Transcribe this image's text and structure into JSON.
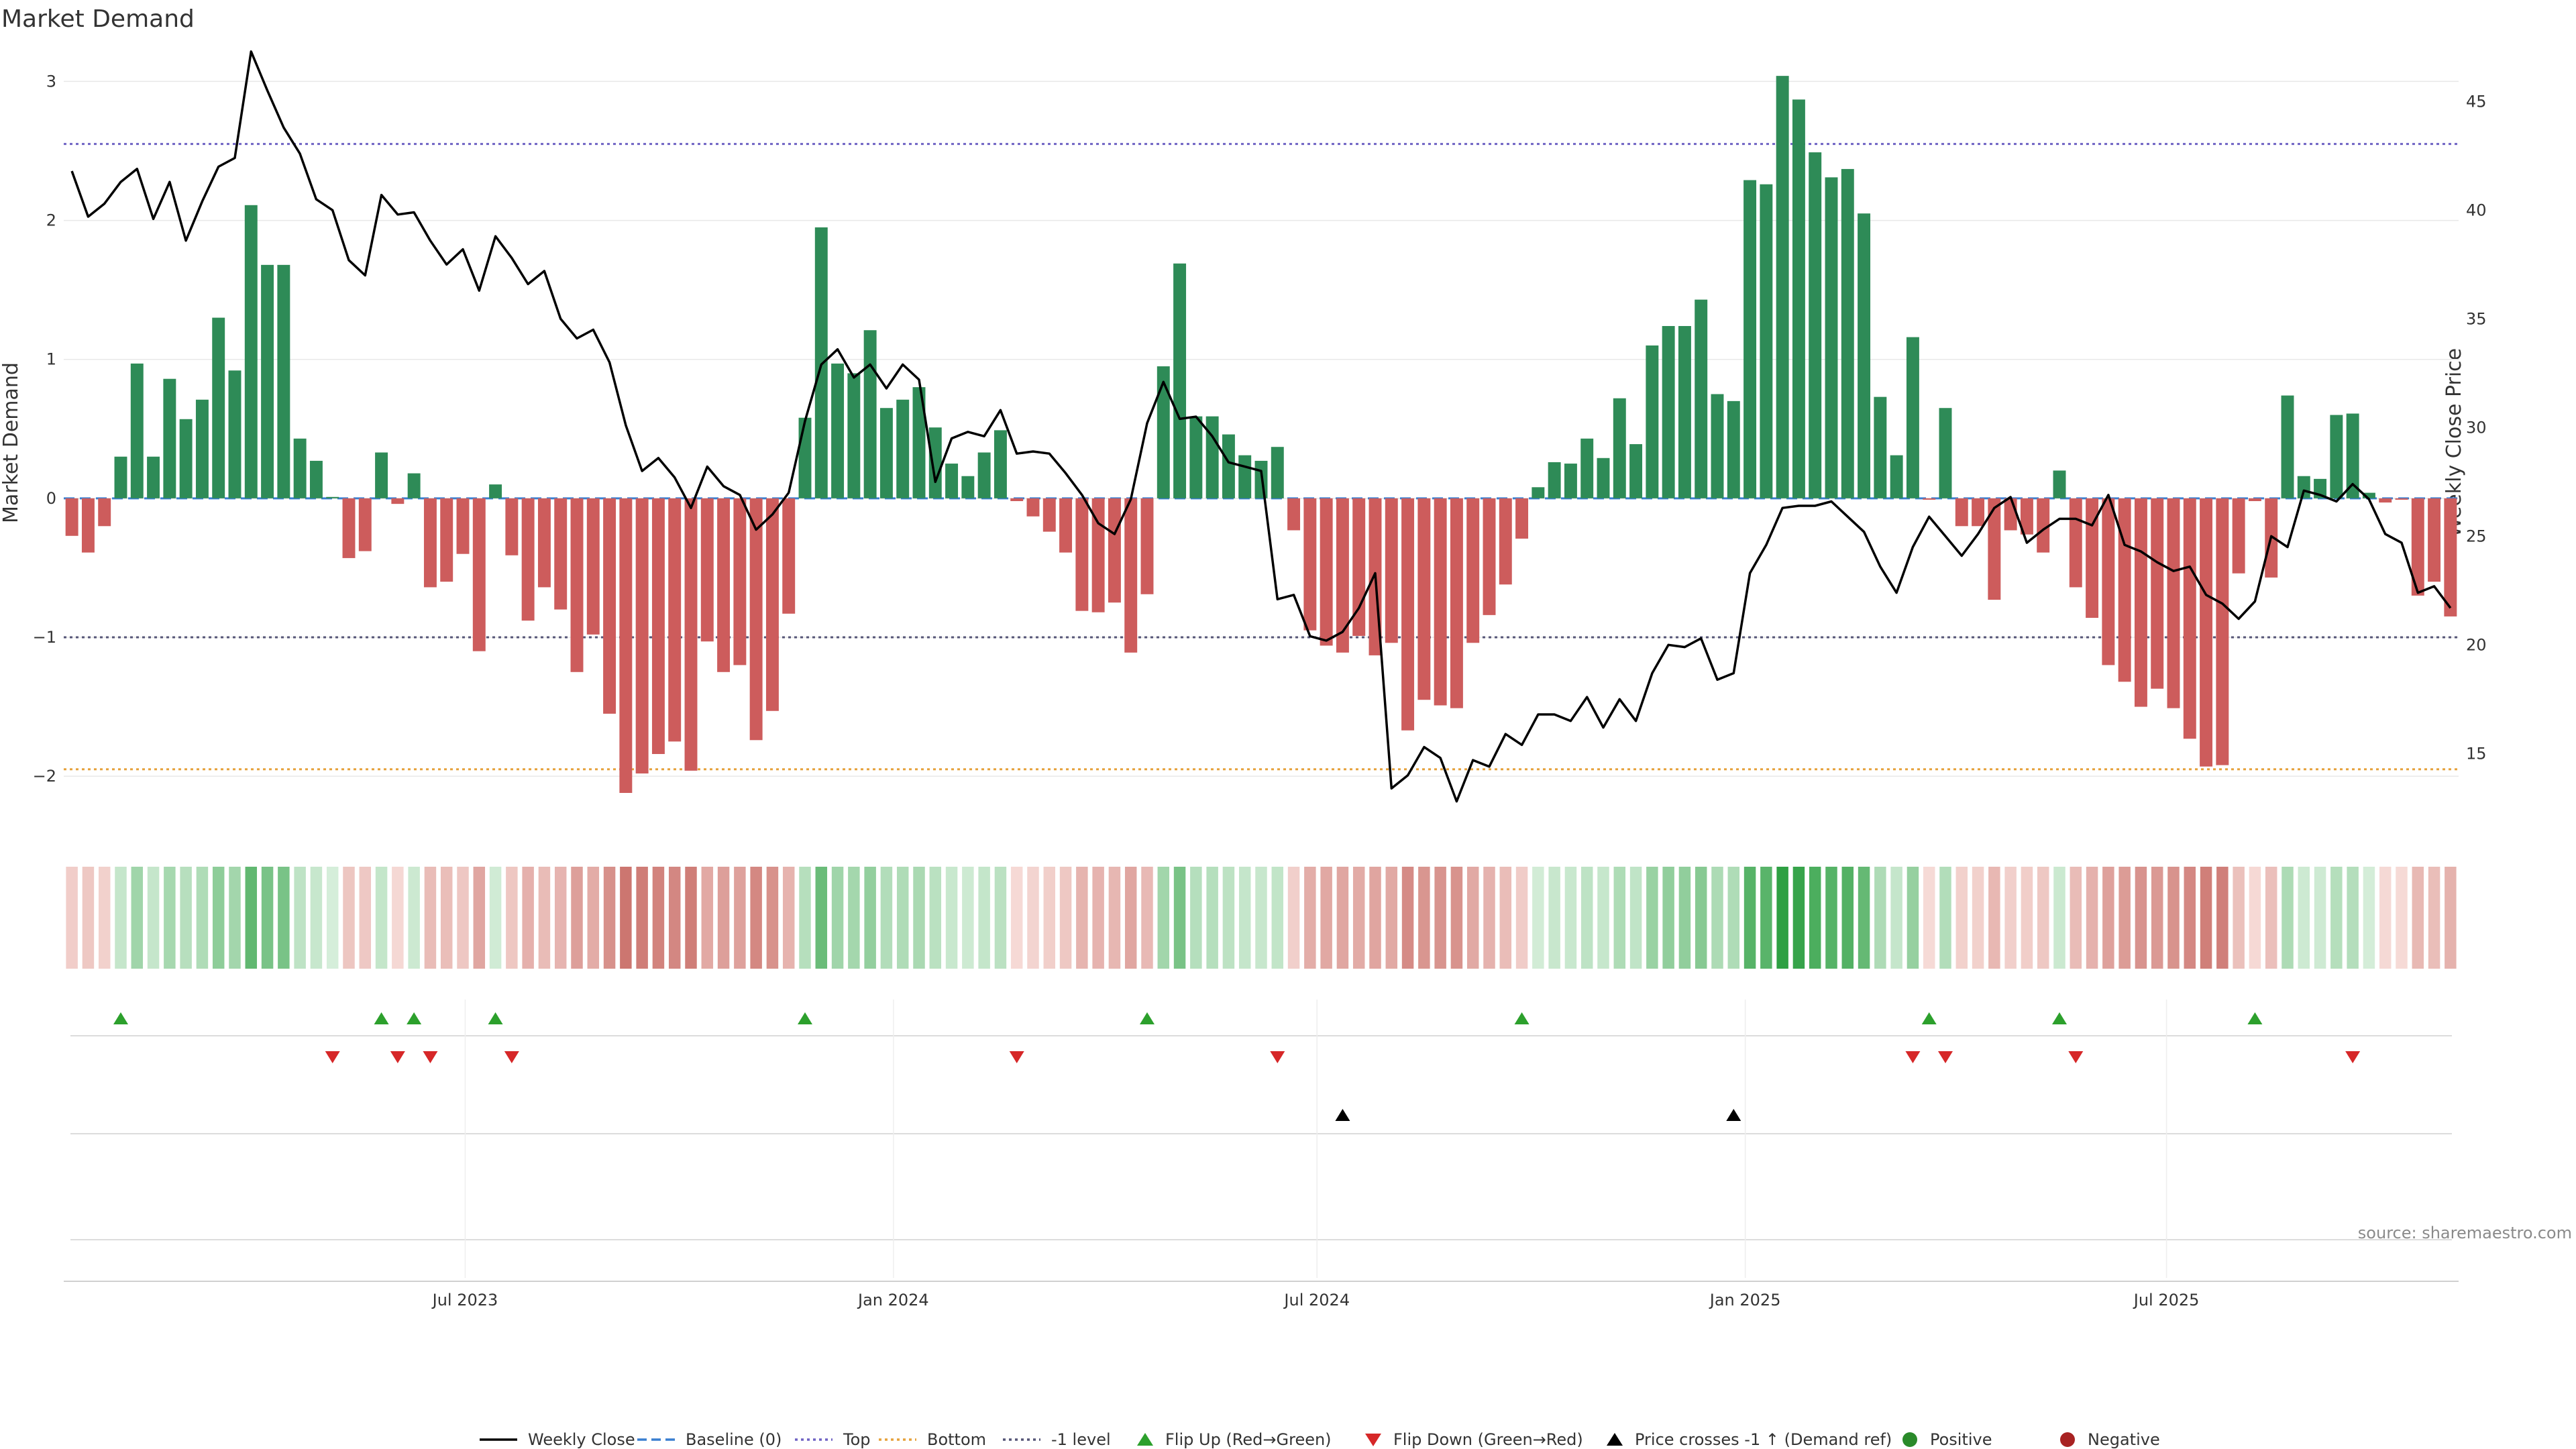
{
  "chart_data": {
    "type": "bar",
    "title": "Market Demand",
    "ylabel_left": "Market Demand",
    "ylabel_right": "Weekly Close Price",
    "source": "source: sharemaestro.com",
    "x_start": "2023-01-13",
    "x_end": "2025-10-31",
    "ylim_left": [
      -2.4,
      3.2
    ],
    "ylim_right": [
      11.4,
      47.2
    ],
    "yticks_left": [
      {
        "value": 3,
        "label": "3"
      },
      {
        "value": 2,
        "label": "2"
      },
      {
        "value": 1,
        "label": "1"
      },
      {
        "value": 0,
        "label": "0"
      },
      {
        "value": -1,
        "label": "−1"
      },
      {
        "value": -2,
        "label": "−2"
      }
    ],
    "yticks_right": [
      {
        "value": 45,
        "label": "45"
      },
      {
        "value": 40,
        "label": "40"
      },
      {
        "value": 35,
        "label": "35"
      },
      {
        "value": 30,
        "label": "30"
      },
      {
        "value": 25,
        "label": "25"
      },
      {
        "value": 20,
        "label": "20"
      },
      {
        "value": 15,
        "label": "15"
      }
    ],
    "xticks": [
      {
        "date": "2023-07-01",
        "label": "Jul 2023"
      },
      {
        "date": "2024-01-01",
        "label": "Jan 2024"
      },
      {
        "date": "2024-07-01",
        "label": "Jul 2024"
      },
      {
        "date": "2025-01-01",
        "label": "Jan 2025"
      },
      {
        "date": "2025-07-01",
        "label": "Jul 2025"
      }
    ],
    "reference_lines": {
      "top": 2.55,
      "bottom": -1.95,
      "minus_one": -1,
      "baseline": 0
    },
    "demand": [
      -0.27,
      -0.39,
      -0.2,
      0.3,
      0.97,
      0.3,
      0.86,
      0.57,
      0.71,
      1.3,
      0.92,
      2.11,
      1.68,
      1.68,
      0.43,
      0.27,
      0.01,
      -0.43,
      -0.38,
      0.33,
      -0.04,
      0.18,
      -0.64,
      -0.6,
      -0.4,
      -1.1,
      0.1,
      -0.41,
      -0.88,
      -0.64,
      -0.8,
      -1.25,
      -0.98,
      -1.55,
      -2.12,
      -1.98,
      -1.84,
      -1.75,
      -1.96,
      -1.03,
      -1.25,
      -1.2,
      -1.74,
      -1.53,
      -0.83,
      0.58,
      1.95,
      0.97,
      0.9,
      1.21,
      0.65,
      0.71,
      0.8,
      0.51,
      0.25,
      0.16,
      0.33,
      0.49,
      -0.02,
      -0.13,
      -0.24,
      -0.39,
      -0.81,
      -0.82,
      -0.75,
      -1.11,
      -0.69,
      0.95,
      1.69,
      0.59,
      0.59,
      0.46,
      0.31,
      0.27,
      0.37,
      -0.23,
      -0.95,
      -1.06,
      -1.11,
      -0.99,
      -1.13,
      -1.04,
      -1.67,
      -1.45,
      -1.49,
      -1.51,
      -1.04,
      -0.84,
      -0.62,
      -0.29,
      0.08,
      0.26,
      0.25,
      0.43,
      0.29,
      0.72,
      0.39,
      1.1,
      1.24,
      1.24,
      1.43,
      0.75,
      0.7,
      2.29,
      2.26,
      3.04,
      2.87,
      2.49,
      2.31,
      2.37,
      2.05,
      0.73,
      0.31,
      1.16,
      -0.01,
      0.65,
      -0.2,
      -0.2,
      -0.73,
      -0.23,
      -0.26,
      -0.39,
      0.2,
      -0.64,
      -0.86,
      -1.2,
      -1.32,
      -1.5,
      -1.37,
      -1.51,
      -1.73,
      -1.93,
      -1.92,
      -0.54,
      -0.02,
      -0.57,
      0.74,
      0.16,
      0.14,
      0.6,
      0.61,
      0.04,
      -0.03,
      -0.01,
      -0.7,
      -0.6,
      -0.85
    ],
    "weekly_close": [
      41.8,
      39.7,
      40.3,
      41.3,
      41.9,
      39.6,
      41.3,
      38.6,
      40.4,
      42.0,
      42.4,
      47.3,
      45.5,
      43.8,
      42.6,
      40.5,
      40.0,
      37.7,
      37.0,
      40.7,
      39.8,
      39.9,
      38.6,
      37.5,
      38.2,
      36.3,
      38.8,
      37.8,
      36.6,
      37.2,
      35.0,
      34.1,
      34.5,
      33.0,
      30.1,
      28.0,
      28.6,
      27.7,
      26.3,
      28.2,
      27.3,
      26.9,
      25.3,
      26.0,
      27.0,
      30.3,
      32.9,
      33.6,
      32.3,
      32.9,
      31.8,
      32.9,
      32.2,
      27.5,
      29.5,
      29.8,
      29.6,
      30.8,
      28.8,
      28.9,
      28.8,
      27.9,
      26.9,
      25.6,
      25.1,
      26.7,
      30.2,
      32.1,
      30.4,
      30.5,
      29.6,
      28.4,
      28.2,
      28.0,
      22.1,
      22.3,
      20.4,
      20.2,
      20.6,
      21.7,
      23.3,
      13.4,
      14.0,
      15.3,
      14.8,
      12.8,
      14.7,
      14.4,
      15.9,
      15.4,
      16.8,
      16.8,
      16.5,
      17.6,
      16.2,
      17.5,
      16.5,
      18.7,
      20.0,
      19.9,
      20.3,
      18.4,
      18.7,
      23.3,
      24.6,
      26.3,
      26.4,
      26.4,
      26.6,
      25.9,
      25.2,
      23.6,
      22.4,
      24.5,
      25.9,
      25.0,
      24.1,
      25.1,
      26.3,
      26.8,
      24.7,
      25.3,
      25.8,
      25.8,
      25.5,
      26.9,
      24.6,
      24.3,
      23.8,
      23.4,
      23.6,
      22.3,
      21.9,
      21.2,
      22.0,
      25.0,
      24.5,
      27.1,
      26.9,
      26.6,
      27.4,
      26.7,
      25.1,
      24.7,
      22.4,
      22.7,
      21.7
    ],
    "flip_up_index": [
      3,
      19,
      21,
      26,
      45,
      66,
      89,
      114,
      122,
      134
    ],
    "flip_down_index": [
      16,
      20,
      22,
      27,
      58,
      74,
      113,
      115,
      123,
      140
    ],
    "price_cross_index": [
      78,
      102
    ],
    "legend": [
      {
        "key": "weekly_close",
        "label": "Weekly Close",
        "color": "#000000"
      },
      {
        "key": "baseline",
        "label": "Baseline (0)",
        "color": "#3a7fd0"
      },
      {
        "key": "top",
        "label": "Top",
        "color": "#6f63c4"
      },
      {
        "key": "bottom",
        "label": "Bottom",
        "color": "#e6a23c"
      },
      {
        "key": "minus_one",
        "label": "-1 level",
        "color": "#555577"
      },
      {
        "key": "flip_up",
        "label": "Flip Up (Red→Green)",
        "color": "#2ca02c"
      },
      {
        "key": "flip_down",
        "label": "Flip Down (Green→Red)",
        "color": "#d62728"
      },
      {
        "key": "price_cross",
        "label": "Price crosses -1 ↑ (Demand ref)",
        "color": "#000000"
      },
      {
        "key": "positive",
        "label": "Positive",
        "color": "#2a8a2a"
      },
      {
        "key": "negative",
        "label": "Negative",
        "color": "#a82222"
      }
    ],
    "colors": {
      "positive_bar": "#2e8b57",
      "negative_bar": "#cd5c5c",
      "price_line": "#000000",
      "grid": "#e8e8e8"
    }
  }
}
